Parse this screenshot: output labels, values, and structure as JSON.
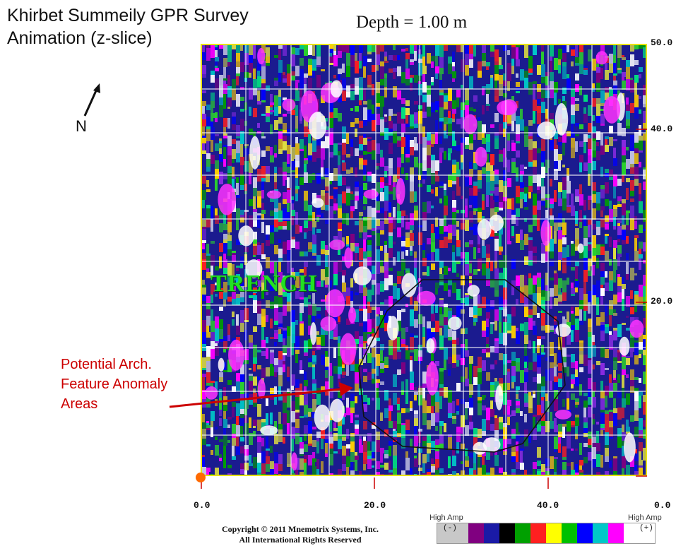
{
  "title_lines": [
    "Khirbet Summeily GPR Survey",
    "Animation (z-slice)"
  ],
  "depth_label": "Depth = 1.00 m",
  "north_label": "N",
  "trench_label": "TRENCH",
  "annotation_lines": [
    "Potential Arch.",
    "Feature Anomaly",
    "Areas"
  ],
  "axis": {
    "x_ticks": [
      "0.0",
      "20.0",
      "40.0",
      "0.0"
    ],
    "y_ticks": [
      "50.0",
      "40.0",
      "20.0"
    ]
  },
  "copyright_lines": [
    "Copyright © 2011 Mnemotrix Systems, Inc.",
    "All International Rights Reserved"
  ],
  "legend": {
    "left_label": "High Amp",
    "right_label": "High Amp",
    "neg_sign": "(-)",
    "pos_sign": "(+)",
    "colors": [
      "#c8c8c8",
      "#c8c8c8",
      "#800080",
      "#1a1aa6",
      "#000000",
      "#00a000",
      "#ff2020",
      "#ffff00",
      "#00c000",
      "#0000ff",
      "#00c8c8",
      "#ff00ff",
      "#ffffff",
      "#ffffff"
    ]
  },
  "colors": {
    "annotation": "#cc0000",
    "trench": "#22e022",
    "plot_border": "#e9e300",
    "grid": "#ffffff",
    "origin_marker": "#ff6a00"
  }
}
